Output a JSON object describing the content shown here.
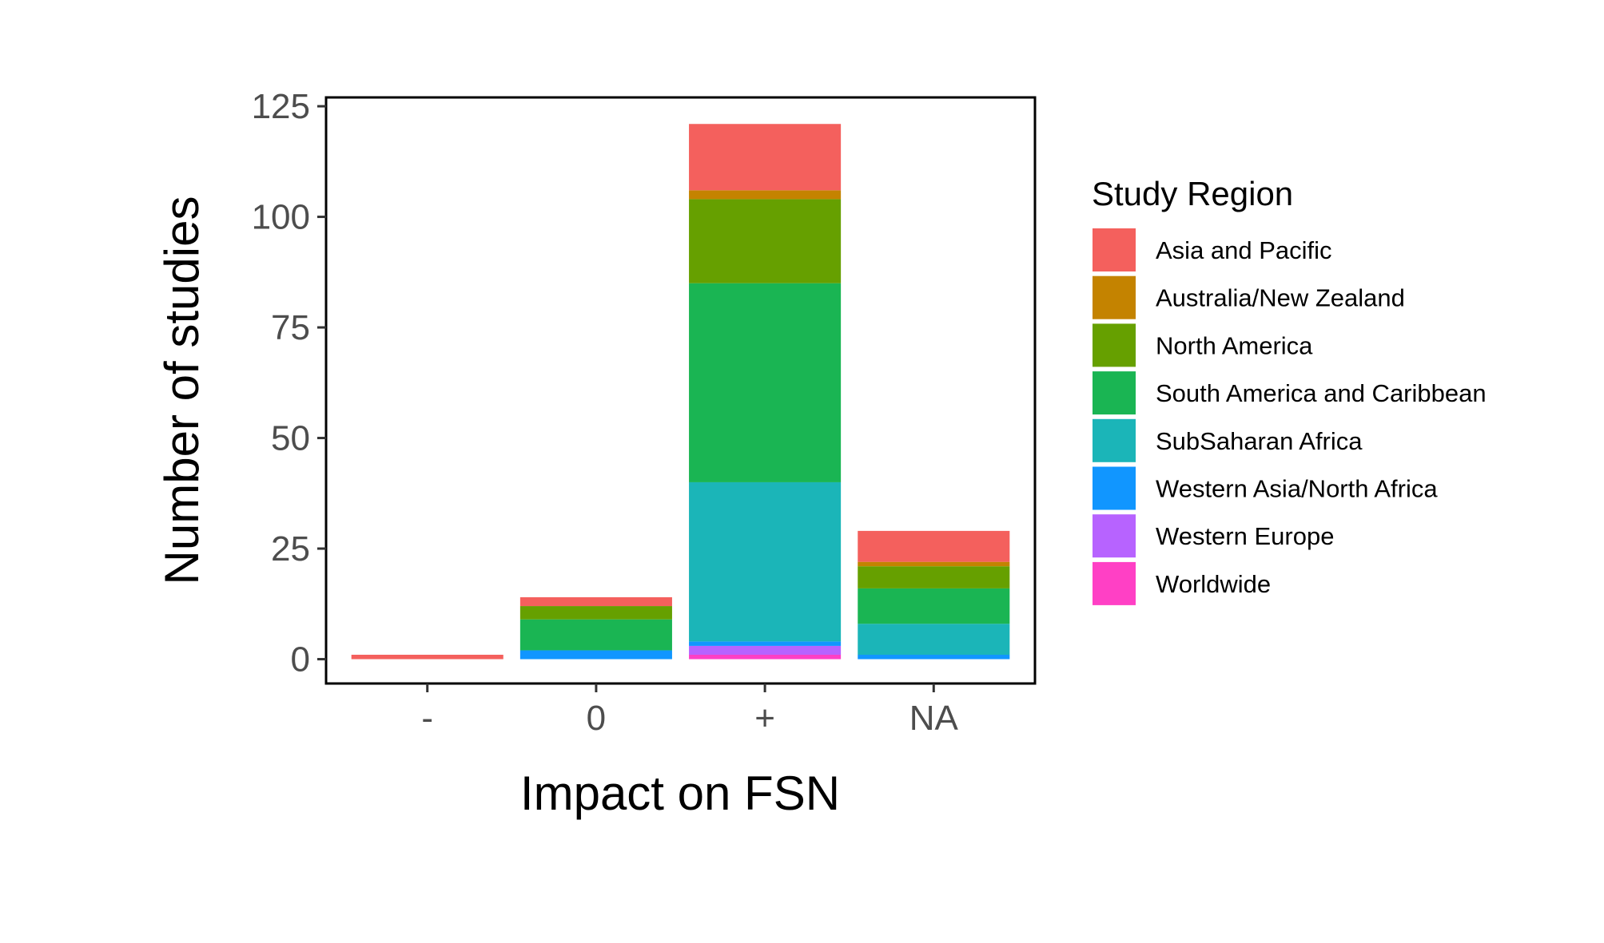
{
  "chart_data": {
    "type": "bar",
    "stacked": true,
    "title": "",
    "xlabel": "Impact on FSN",
    "ylabel": "Number of studies",
    "categories": [
      "-",
      "0",
      "+",
      "NA"
    ],
    "ylim": [
      -5.5,
      127
    ],
    "yticks": [
      0,
      25,
      50,
      75,
      100,
      125
    ],
    "grid": false,
    "legend": {
      "title": "Study Region",
      "position": "right"
    },
    "series": [
      {
        "name": "Worldwide",
        "color": "#FF40C5",
        "values": [
          0,
          0,
          1,
          0
        ]
      },
      {
        "name": "Western Europe",
        "color": "#B763FF",
        "values": [
          0,
          0,
          2,
          0
        ]
      },
      {
        "name": "Western Asia/North Africa",
        "color": "#1196FF",
        "values": [
          0,
          2,
          1,
          1
        ]
      },
      {
        "name": "SubSaharan Africa",
        "color": "#1BB5B8",
        "values": [
          0,
          0,
          36,
          7
        ]
      },
      {
        "name": "South America and Caribbean",
        "color": "#1AB553",
        "values": [
          0,
          7,
          45,
          8
        ]
      },
      {
        "name": "North America",
        "color": "#66A000",
        "values": [
          0,
          3,
          19,
          5
        ]
      },
      {
        "name": "Australia/New Zealand",
        "color": "#C48300",
        "values": [
          0,
          0,
          2,
          1
        ]
      },
      {
        "name": "Asia and Pacific",
        "color": "#F4605D",
        "values": [
          1,
          2,
          15,
          7
        ]
      }
    ],
    "legend_order": [
      "Asia and Pacific",
      "Australia/New Zealand",
      "North America",
      "South America and Caribbean",
      "SubSaharan Africa",
      "Western Asia/North Africa",
      "Western Europe",
      "Worldwide"
    ]
  }
}
